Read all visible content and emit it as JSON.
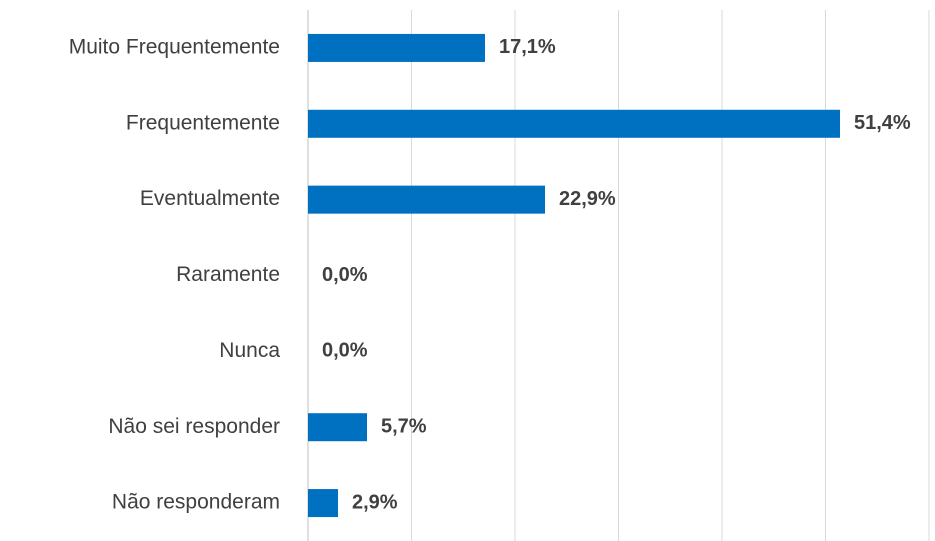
{
  "chart_data": {
    "type": "bar",
    "orientation": "horizontal",
    "categories": [
      "Muito Frequentemente",
      "Frequentemente",
      "Eventualmente",
      "Raramente",
      "Nunca",
      "Não sei responder",
      "Não responderam"
    ],
    "values": [
      17.1,
      51.4,
      22.9,
      0.0,
      0.0,
      5.7,
      2.9
    ],
    "value_labels": [
      "17,1%",
      "51,4%",
      "22,9%",
      "0,0%",
      "0,0%",
      "5,7%",
      "2,9%"
    ],
    "color": "#0070c0",
    "xlim": [
      0,
      60
    ],
    "xticks": [
      0,
      10,
      20,
      30,
      40,
      50,
      60
    ],
    "grid": true
  }
}
